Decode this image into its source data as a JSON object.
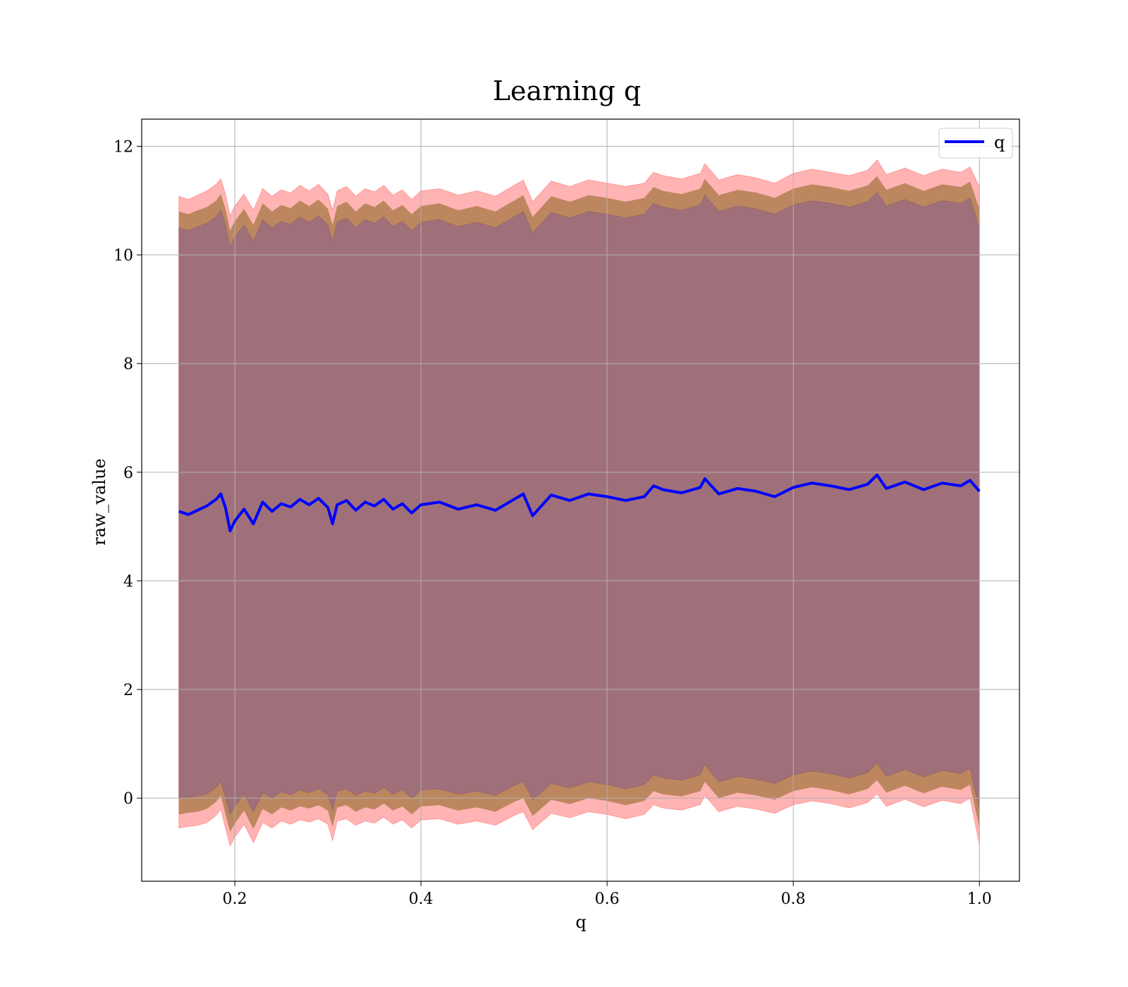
{
  "chart_data": {
    "type": "area",
    "title": "Learning q",
    "xlabel": "q",
    "ylabel": "raw_value",
    "xlim": [
      0.1,
      1.043
    ],
    "ylim": [
      -1.53,
      12.5
    ],
    "xticks": [
      0.2,
      0.4,
      0.6,
      0.8,
      1.0
    ],
    "xtick_labels": [
      "0.2",
      "0.4",
      "0.6",
      "0.8",
      "1.0"
    ],
    "yticks": [
      0,
      2,
      4,
      6,
      8,
      10,
      12
    ],
    "ytick_labels": [
      "0",
      "2",
      "4",
      "6",
      "8",
      "10",
      "12"
    ],
    "grid": true,
    "legend": {
      "placement": "top-right",
      "entries": [
        "q"
      ]
    },
    "colors": {
      "line": "#0000ff",
      "outer_band": "#ff9999",
      "inner_band": "#b07f50",
      "core_band": "#a0707a",
      "grid": "#b0b0b0"
    },
    "series": [
      {
        "name": "q",
        "x": [
          0.14,
          0.15,
          0.16,
          0.17,
          0.18,
          0.185,
          0.19,
          0.195,
          0.2,
          0.21,
          0.22,
          0.23,
          0.24,
          0.25,
          0.26,
          0.27,
          0.28,
          0.29,
          0.3,
          0.305,
          0.31,
          0.32,
          0.33,
          0.34,
          0.35,
          0.36,
          0.37,
          0.38,
          0.39,
          0.4,
          0.42,
          0.44,
          0.46,
          0.48,
          0.5,
          0.51,
          0.52,
          0.54,
          0.56,
          0.58,
          0.6,
          0.62,
          0.64,
          0.65,
          0.66,
          0.68,
          0.7,
          0.705,
          0.72,
          0.74,
          0.76,
          0.78,
          0.8,
          0.82,
          0.84,
          0.86,
          0.88,
          0.89,
          0.9,
          0.92,
          0.94,
          0.96,
          0.98,
          0.99,
          1.0
        ],
        "y": [
          5.28,
          5.22,
          5.3,
          5.38,
          5.5,
          5.6,
          5.35,
          4.92,
          5.1,
          5.32,
          5.05,
          5.45,
          5.28,
          5.42,
          5.36,
          5.5,
          5.4,
          5.52,
          5.35,
          5.05,
          5.4,
          5.48,
          5.3,
          5.45,
          5.38,
          5.5,
          5.32,
          5.42,
          5.25,
          5.4,
          5.45,
          5.32,
          5.4,
          5.3,
          5.5,
          5.6,
          5.2,
          5.58,
          5.48,
          5.6,
          5.55,
          5.48,
          5.55,
          5.75,
          5.68,
          5.62,
          5.72,
          5.88,
          5.6,
          5.7,
          5.65,
          5.55,
          5.72,
          5.8,
          5.75,
          5.68,
          5.78,
          5.95,
          5.7,
          5.82,
          5.68,
          5.8,
          5.75,
          5.85,
          5.65
        ],
        "outer_low": [
          -0.55,
          -0.52,
          -0.5,
          -0.45,
          -0.32,
          -0.2,
          -0.55,
          -0.88,
          -0.72,
          -0.48,
          -0.82,
          -0.45,
          -0.55,
          -0.42,
          -0.48,
          -0.4,
          -0.44,
          -0.38,
          -0.48,
          -0.78,
          -0.42,
          -0.38,
          -0.5,
          -0.42,
          -0.46,
          -0.35,
          -0.48,
          -0.4,
          -0.55,
          -0.4,
          -0.38,
          -0.48,
          -0.42,
          -0.5,
          -0.32,
          -0.25,
          -0.58,
          -0.28,
          -0.36,
          -0.25,
          -0.3,
          -0.38,
          -0.3,
          -0.12,
          -0.18,
          -0.22,
          -0.12,
          0.05,
          -0.25,
          -0.15,
          -0.2,
          -0.28,
          -0.12,
          -0.05,
          -0.1,
          -0.18,
          -0.08,
          0.08,
          -0.15,
          -0.02,
          -0.16,
          -0.04,
          -0.1,
          0.0,
          -0.85
        ],
        "inner_low": [
          -0.3,
          -0.27,
          -0.25,
          -0.2,
          -0.07,
          0.05,
          -0.3,
          -0.62,
          -0.47,
          -0.23,
          -0.57,
          -0.2,
          -0.3,
          -0.17,
          -0.23,
          -0.15,
          -0.19,
          -0.13,
          -0.23,
          -0.53,
          -0.17,
          -0.13,
          -0.25,
          -0.17,
          -0.21,
          -0.1,
          -0.23,
          -0.15,
          -0.3,
          -0.15,
          -0.13,
          -0.23,
          -0.17,
          -0.25,
          -0.07,
          0.0,
          -0.33,
          -0.03,
          -0.11,
          0.0,
          -0.05,
          -0.13,
          -0.05,
          0.13,
          0.07,
          0.03,
          0.13,
          0.3,
          0.0,
          0.1,
          0.05,
          -0.03,
          0.13,
          0.2,
          0.15,
          0.07,
          0.17,
          0.33,
          0.1,
          0.23,
          0.09,
          0.21,
          0.15,
          0.25,
          -0.55
        ],
        "core_low": [
          0.0,
          0.02,
          0.04,
          0.08,
          0.2,
          0.32,
          0.02,
          -0.3,
          -0.15,
          0.08,
          -0.25,
          0.1,
          0.0,
          0.12,
          0.06,
          0.15,
          0.1,
          0.17,
          0.07,
          -0.22,
          0.13,
          0.17,
          0.05,
          0.13,
          0.09,
          0.2,
          0.07,
          0.15,
          0.0,
          0.15,
          0.17,
          0.07,
          0.13,
          0.05,
          0.23,
          0.3,
          -0.03,
          0.27,
          0.19,
          0.3,
          0.25,
          0.17,
          0.25,
          0.43,
          0.37,
          0.33,
          0.43,
          0.62,
          0.3,
          0.4,
          0.35,
          0.27,
          0.43,
          0.5,
          0.45,
          0.37,
          0.47,
          0.65,
          0.4,
          0.53,
          0.39,
          0.51,
          0.45,
          0.55,
          -0.2
        ],
        "core_high": [
          10.5,
          10.45,
          10.52,
          10.58,
          10.7,
          10.82,
          10.55,
          10.15,
          10.32,
          10.55,
          10.25,
          10.65,
          10.5,
          10.62,
          10.56,
          10.7,
          10.6,
          10.72,
          10.55,
          10.25,
          10.6,
          10.68,
          10.5,
          10.65,
          10.58,
          10.7,
          10.52,
          10.62,
          10.45,
          10.6,
          10.65,
          10.52,
          10.6,
          10.5,
          10.7,
          10.8,
          10.4,
          10.78,
          10.68,
          10.8,
          10.75,
          10.68,
          10.75,
          10.95,
          10.88,
          10.82,
          10.92,
          11.1,
          10.8,
          10.9,
          10.85,
          10.75,
          10.92,
          11.0,
          10.95,
          10.88,
          10.98,
          11.15,
          10.9,
          11.02,
          10.88,
          11.0,
          10.95,
          11.05,
          10.5
        ],
        "inner_high": [
          10.8,
          10.75,
          10.82,
          10.88,
          11.0,
          11.12,
          10.85,
          10.45,
          10.62,
          10.85,
          10.55,
          10.95,
          10.8,
          10.92,
          10.86,
          11.0,
          10.9,
          11.02,
          10.85,
          10.55,
          10.9,
          10.98,
          10.8,
          10.95,
          10.88,
          11.0,
          10.82,
          10.92,
          10.75,
          10.9,
          10.95,
          10.82,
          10.9,
          10.8,
          11.0,
          11.1,
          10.7,
          11.08,
          10.98,
          11.1,
          11.05,
          10.98,
          11.05,
          11.25,
          11.18,
          11.12,
          11.22,
          11.4,
          11.1,
          11.2,
          11.15,
          11.05,
          11.22,
          11.3,
          11.25,
          11.18,
          11.28,
          11.45,
          11.2,
          11.32,
          11.18,
          11.3,
          11.25,
          11.35,
          10.85
        ],
        "outer_high": [
          11.08,
          11.02,
          11.1,
          11.18,
          11.3,
          11.4,
          11.12,
          10.72,
          10.9,
          11.12,
          10.82,
          11.22,
          11.08,
          11.2,
          11.14,
          11.28,
          11.18,
          11.3,
          11.12,
          10.82,
          11.18,
          11.26,
          11.08,
          11.22,
          11.16,
          11.28,
          11.1,
          11.2,
          11.02,
          11.18,
          11.22,
          11.1,
          11.18,
          11.08,
          11.28,
          11.38,
          10.98,
          11.36,
          11.26,
          11.38,
          11.32,
          11.26,
          11.32,
          11.52,
          11.46,
          11.4,
          11.5,
          11.68,
          11.38,
          11.48,
          11.42,
          11.32,
          11.5,
          11.58,
          11.52,
          11.46,
          11.56,
          11.75,
          11.48,
          11.6,
          11.46,
          11.58,
          11.52,
          11.62,
          11.25
        ]
      }
    ]
  }
}
